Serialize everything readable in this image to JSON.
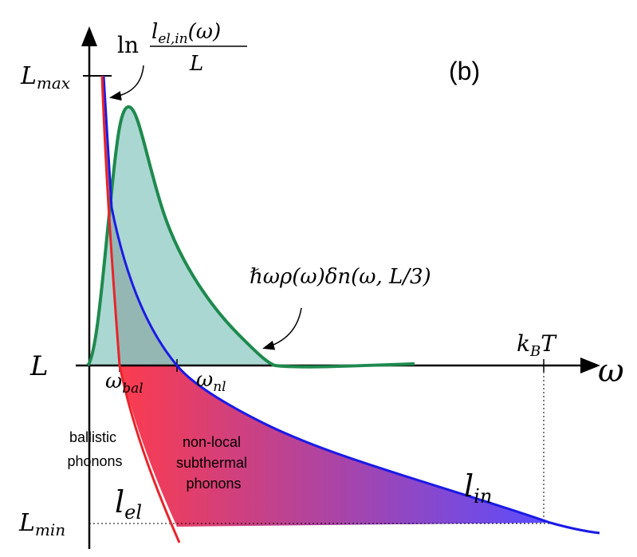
{
  "panel_label": "(b)",
  "annotations": {
    "log_ratio": {
      "prefix": "ln",
      "numerator": "l",
      "numerator_sub": "el,in",
      "numerator_arg": "(ω)",
      "denominator": "L"
    },
    "spectral_density": "ℏωρ(ω)δn(ω, L/3)"
  },
  "axes": {
    "x_label": "ω",
    "y_label_mid": "L",
    "y_label_max": {
      "base": "L",
      "sub": "max"
    },
    "y_label_min": {
      "base": "L",
      "sub": "min"
    },
    "thermal_mark": {
      "base": "k",
      "sub": "B",
      "suffix": "T"
    }
  },
  "frequencies": {
    "omega_bal": {
      "base": "ω",
      "sub": "bal"
    },
    "omega_nl": {
      "base": "ω",
      "sub": "nl"
    }
  },
  "curves": {
    "l_el": {
      "base": "l",
      "sub": "el",
      "color": "#e8242b"
    },
    "l_in": {
      "base": "l",
      "sub": "in",
      "color": "#1a1ae6"
    },
    "density": {
      "color": "#1e8a4e",
      "fill": "#8fc9c3"
    }
  },
  "regions": {
    "ballistic": [
      "ballistic",
      "phonons"
    ],
    "nonlocal": [
      "non-local",
      "subthermal",
      "phonons"
    ]
  },
  "colors": {
    "gradient_start": "#ff3b4a",
    "gradient_end": "#5a4dff",
    "overlap_fill": "#9a6a6e"
  }
}
